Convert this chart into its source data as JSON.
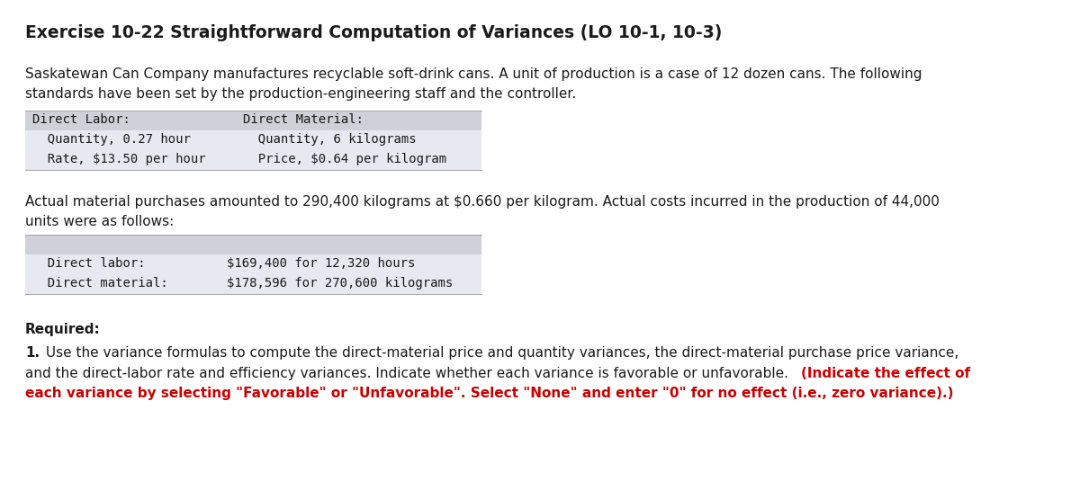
{
  "title": "Exercise 10-22 Straightforward Computation of Variances (LO 10-1, 10-3)",
  "bg_color": "#ffffff",
  "intro_line1": "Saskatewan Can Company manufactures recyclable soft-drink cans. A unit of production is a case of 12 dozen cans. The following",
  "intro_line2": "standards have been set by the production-engineering staff and the controller.",
  "table1_header_left": "Direct Labor:",
  "table1_header_right": "Direct Material:",
  "table1_row1_left": "  Quantity, 0.27 hour",
  "table1_row1_right": "  Quantity, 6 kilograms",
  "table1_row2_left": "  Rate, $13.50 per hour",
  "table1_row2_right": "  Price, $0.64 per kilogram",
  "mid_line1": "Actual material purchases amounted to 290,400 kilograms at $0.660 per kilogram. Actual costs incurred in the production of 44,000",
  "mid_line2": "units were as follows:",
  "table2_row1_label": "  Direct labor:",
  "table2_row1_value": "        $169,400 for 12,320 hours",
  "table2_row2_label": "  Direct material:",
  "table2_row2_value": "        $178,596 for 270,600 kilograms",
  "required_label": "Required:",
  "req_num": "1.",
  "req_text1": " Use the variance formulas to compute the direct-material price and quantity variances, the direct-material purchase price variance,",
  "req_text2": "and the direct-labor rate and efficiency variances. Indicate whether each variance is favorable or unfavorable. ",
  "req_text2_red": "(Indicate the effect of",
  "req_text3": "each variance by selecting \"Favorable\" or \"Unfavorable\". Select \"None\" and enter \"0\" for no effect (i.e., zero variance).)",
  "table_header_bg": "#d0d0d8",
  "table_data_bg": "#e8e8f0",
  "table_border": "#aaaaaa",
  "font_size_title": 13.5,
  "font_size_body": 11.0,
  "font_size_table": 10.0,
  "text_color": "#1a1a1a",
  "red_color": "#cc0000"
}
